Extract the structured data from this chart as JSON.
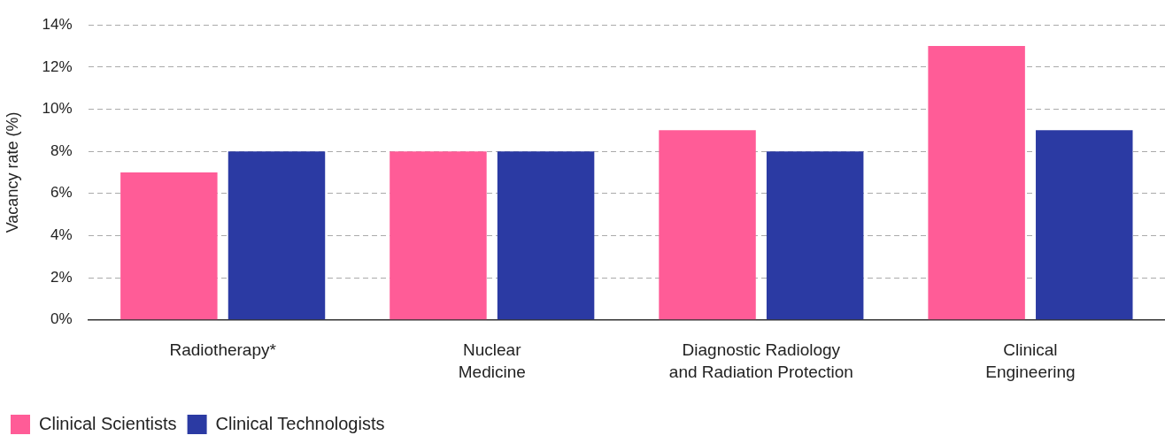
{
  "chart_data": {
    "type": "bar",
    "ylabel": "Vacancy rate (%)",
    "categories": [
      "Radiotherapy*",
      "Nuclear\nMedicine",
      "Diagnostic Radiology\nand Radiation Protection",
      "Clinical\nEngineering"
    ],
    "series": [
      {
        "name": "Clinical Scientists",
        "color": "#ff5c97",
        "values": [
          7,
          8,
          9,
          13
        ]
      },
      {
        "name": "Clinical Technologists",
        "color": "#2b3aa3",
        "values": [
          8,
          8,
          8,
          9
        ]
      }
    ],
    "ylim": [
      0,
      14
    ],
    "yticks": [
      {
        "value": 0,
        "label": "0%"
      },
      {
        "value": 2,
        "label": "2%"
      },
      {
        "value": 4,
        "label": "4%"
      },
      {
        "value": 6,
        "label": "6%"
      },
      {
        "value": 8,
        "label": "8%"
      },
      {
        "value": 10,
        "label": "10%"
      },
      {
        "value": 12,
        "label": "12%"
      },
      {
        "value": 14,
        "label": "14%"
      }
    ],
    "grid": "y",
    "legend": "bottom left"
  }
}
